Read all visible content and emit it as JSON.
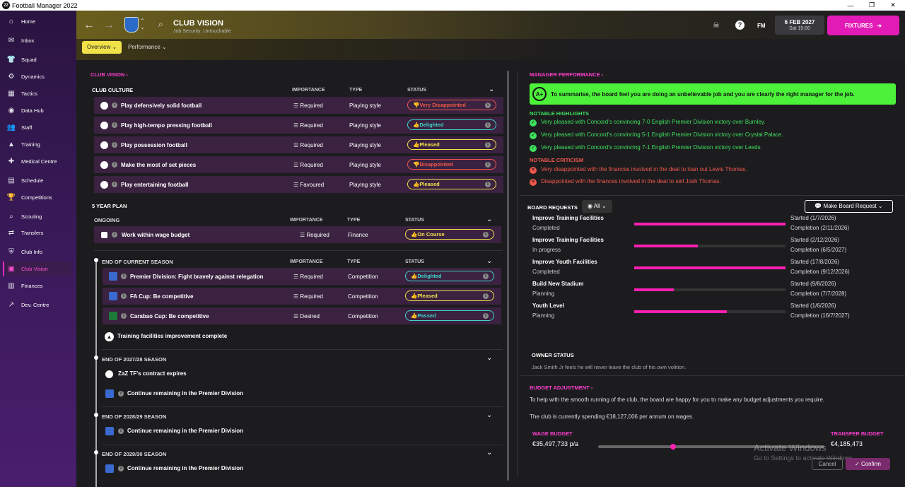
{
  "app": {
    "title": "Football Manager 2022",
    "logo": "22",
    "min": "—",
    "max": "❐",
    "close": "✕"
  },
  "sidebar": {
    "items": [
      {
        "label": "Home",
        "icon": "⌂"
      },
      {
        "label": "Inbox",
        "icon": "✉"
      },
      {
        "label": "Squad",
        "icon": "👕"
      },
      {
        "label": "Dynamics",
        "icon": "⚙"
      },
      {
        "label": "Tactics",
        "icon": "▦"
      },
      {
        "label": "Data Hub",
        "icon": "◉"
      },
      {
        "label": "Staff",
        "icon": "👥"
      },
      {
        "label": "Training",
        "icon": "▲"
      },
      {
        "label": "Medical Centre",
        "icon": "✚"
      },
      {
        "label": "Schedule",
        "icon": "▤"
      },
      {
        "label": "Competitions",
        "icon": "🏆"
      },
      {
        "label": "Scouting",
        "icon": "⌕"
      },
      {
        "label": "Transfers",
        "icon": "⇄"
      },
      {
        "label": "Club Info",
        "icon": "⛨"
      },
      {
        "label": "Club Vision",
        "icon": "▣"
      },
      {
        "label": "Finances",
        "icon": "▥"
      },
      {
        "label": "Dev. Centre",
        "icon": "↗"
      }
    ]
  },
  "header": {
    "title": "CLUB VISION",
    "subtitle": "Job Security: Untouchable",
    "date": "6 FEB 2027",
    "time": "Sat 15:00",
    "fixtures": "FIXTURES",
    "fm": "FM",
    "help": "?",
    "back": "←",
    "fwd": "→",
    "search": "⌕"
  },
  "tabs": {
    "overview": "Overview ⌄",
    "performance": "Performance ⌄"
  },
  "left": {
    "title": "CLUB VISION ›",
    "culture": {
      "title": "CLUB CULTURE",
      "cols": [
        "IMPORTANCE",
        "TYPE",
        "STATUS"
      ],
      "rows": [
        {
          "name": "Play defensively solid football",
          "importance": "Required",
          "type": "Playing style",
          "status": "Very Disappointed",
          "sc": "red"
        },
        {
          "name": "Play high-tempo pressing football",
          "importance": "Required",
          "type": "Playing style",
          "status": "Delighted",
          "sc": "teal"
        },
        {
          "name": "Play possession football",
          "importance": "Required",
          "type": "Playing style",
          "status": "Pleased",
          "sc": "yellow"
        },
        {
          "name": "Make the most of set pieces",
          "importance": "Required",
          "type": "Playing style",
          "status": "Disappointed",
          "sc": "red"
        },
        {
          "name": "Play entertaining football",
          "importance": "Favoured",
          "type": "Playing style",
          "status": "Pleased",
          "sc": "yellow"
        }
      ]
    },
    "plan": {
      "title": "5 YEAR PLAN",
      "ongoing": "ONGOING",
      "cols": [
        "IMPORTANCE",
        "TYPE",
        "STATUS"
      ],
      "ongoing_row": {
        "name": "Work within wage budget",
        "importance": "Required",
        "type": "Finance",
        "status": "On Course",
        "sc": "yellow"
      },
      "eocs": "END OF CURRENT SEASON",
      "season_rows": [
        {
          "name": "Premier Division: Fight bravely against relegation",
          "importance": "Required",
          "type": "Competition",
          "status": "Delighted",
          "sc": "teal"
        },
        {
          "name": "FA Cup: Be competitive",
          "importance": "Required",
          "type": "Competition",
          "status": "Pleased",
          "sc": "yellow"
        },
        {
          "name": "Carabao Cup: Be competitive",
          "importance": "Desired",
          "type": "Competition",
          "status": "Passed",
          "sc": "teal"
        }
      ],
      "training": "Training facilities improvement complete",
      "s2728": "END OF 2027/28 SEASON",
      "s2728a": "ZaZ TF's contract expires",
      "s2728b": "Continue remaining in the Premier Division",
      "s2829": "END OF 2028/29 SEASON",
      "s2829a": "Continue remaining in the Premier Division",
      "s2930": "END OF 2029/30 SEASON",
      "s2930a": "Continue remaining in the Premier Division"
    }
  },
  "right": {
    "perf_title": "MANAGER PERFORMANCE ›",
    "grade": "A+",
    "summary": "To summarise, the board feel you are doing an unbelievable job and you are clearly the right manager for the job.",
    "highlights_title": "NOTABLE HIGHLIGHTS",
    "highlights": [
      "Very pleased with Concord's convincing 7-0 English Premier Division victory over Burnley.",
      "Very pleased with Concord's convincing 5-1 English Premier Division victory over Crystal Palace.",
      "Very pleased with Concord's convincing 7-1 English Premier Division victory over Leeds."
    ],
    "criticism_title": "NOTABLE CRITICISM",
    "criticism": [
      "Very disappointed with the finances involved in the deal to loan out Lewis Thomas.",
      "Disappointed with the finances involved in the deal to sell Josh Thomas."
    ],
    "requests_title": "BOARD REQUESTS",
    "filter": "All",
    "make_request": "Make Board Request",
    "requests": [
      {
        "name": "Improve Training Facilities",
        "status": "Completed",
        "started": "Started (1/7/2026)",
        "completion": "Completion (2/11/2026)",
        "progress": 1.0
      },
      {
        "name": "Improve Training Facilities",
        "status": "In progress",
        "started": "Started (2/12/2026)",
        "completion": "Completion (6/5/2027)",
        "progress": 0.42
      },
      {
        "name": "Improve Youth Facilities",
        "status": "Completed",
        "started": "Started (17/8/2026)",
        "completion": "Completion (9/12/2026)",
        "progress": 1.0
      },
      {
        "name": "Build New Stadium",
        "status": "Planning",
        "started": "Started (9/8/2026)",
        "completion": "Completion (7/7/2028)",
        "progress": 0.26
      },
      {
        "name": "Youth Level",
        "status": "Planning",
        "started": "Started (1/6/2026)",
        "completion": "Completion (16/7/2027)",
        "progress": 0.61
      }
    ],
    "owner_title": "OWNER STATUS",
    "owner_text": "Jack Smith Jr feels he will never leave the club of his own volition.",
    "budget_title": "BUDGET ADJUSTMENT ›",
    "budget_text1": "To help with the smooth running of the club, the board are happy for you to make any budget adjustments you require.",
    "budget_text2": "The club is currently spending €18,127,006 per annum on wages.",
    "wage_label": "WAGE BUDGET",
    "wage_value": "€35,497,733 p/a",
    "transfer_label": "TRANSFER BUDGET",
    "transfer_value": "€4,185,473",
    "slider": 0.33,
    "cancel": "Cancel",
    "confirm": "✓ Confirm",
    "watermark1": "Activate Windows",
    "watermark2": "Go to Settings to activate Windows."
  }
}
